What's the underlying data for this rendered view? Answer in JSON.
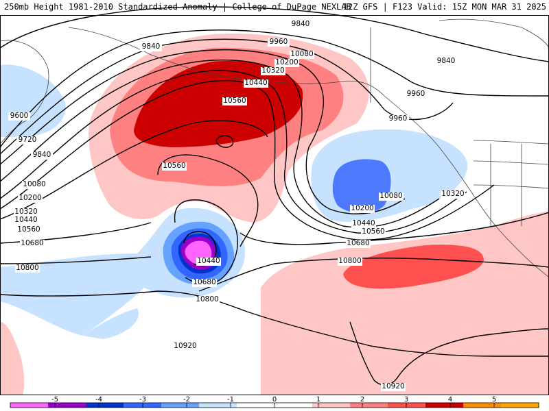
{
  "header": {
    "left": "250mb Height 1981-2010 Standardized Anomaly | College of DuPage NEXLAB",
    "right": "12Z GFS | F123 Valid: 15Z MON MAR 31 2025"
  },
  "colorbar": {
    "ticks": [
      "-5",
      "-4",
      "-3",
      "-2",
      "-1",
      "0",
      "1",
      "2",
      "3",
      "4",
      "5"
    ],
    "colors": [
      "#ff66ff",
      "#9900cc",
      "#0033cc",
      "#3366ff",
      "#66a3ff",
      "#c6e2ff",
      "#ffffff",
      "#ffffff",
      "#ffc6c6",
      "#ff8080",
      "#ff5050",
      "#cc0000",
      "#ff8c00",
      "#ffa500"
    ]
  },
  "contour_labels": [
    "9840",
    "9960",
    "10080",
    "10200",
    "10320",
    "10440",
    "10560",
    "9840",
    "9600",
    "9720",
    "9840",
    "10080",
    "10200",
    "10320",
    "10440",
    "10560",
    "10680",
    "10800",
    "10560",
    "10440",
    "10680",
    "10800",
    "10920",
    "9960",
    "9840",
    "9960",
    "10080",
    "10200",
    "10440",
    "10560",
    "10320",
    "10680",
    "10800",
    "10920"
  ]
}
